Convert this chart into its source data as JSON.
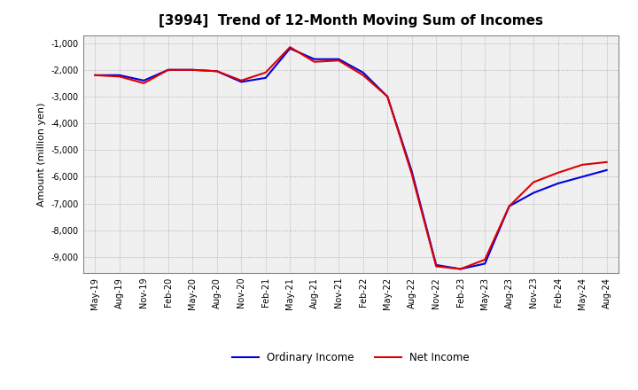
{
  "title": "[3994]  Trend of 12-Month Moving Sum of Incomes",
  "ylabel": "Amount (million yen)",
  "ylim": [
    -9600,
    -700
  ],
  "yticks": [
    -9000,
    -8000,
    -7000,
    -6000,
    -5000,
    -4000,
    -3000,
    -2000,
    -1000
  ],
  "background_color": "#ffffff",
  "plot_bg_color": "#f0f0f0",
  "grid_color": "#999999",
  "x_labels": [
    "May-19",
    "Aug-19",
    "Nov-19",
    "Feb-20",
    "May-20",
    "Aug-20",
    "Nov-20",
    "Feb-21",
    "May-21",
    "Aug-21",
    "Nov-21",
    "Feb-22",
    "May-22",
    "Aug-22",
    "Nov-22",
    "Feb-23",
    "May-23",
    "Aug-23",
    "Nov-23",
    "Feb-24",
    "May-24",
    "Aug-24"
  ],
  "ordinary_income": [
    -2200,
    -2200,
    -2400,
    -2000,
    -2000,
    -2050,
    -2450,
    -2300,
    -1200,
    -1600,
    -1600,
    -2100,
    -3000,
    -5800,
    -9300,
    -9450,
    -9250,
    -7100,
    -6600,
    -6250,
    -6000,
    -5750
  ],
  "net_income": [
    -2200,
    -2250,
    -2500,
    -2000,
    -2000,
    -2050,
    -2400,
    -2100,
    -1150,
    -1700,
    -1650,
    -2200,
    -3000,
    -5900,
    -9350,
    -9450,
    -9100,
    -7100,
    -6200,
    -5850,
    -5550,
    -5450
  ],
  "ordinary_color": "#0000dd",
  "net_color": "#dd0000",
  "line_width": 1.5,
  "legend_labels": [
    "Ordinary Income",
    "Net Income"
  ],
  "title_fontsize": 11,
  "tick_fontsize": 7,
  "ylabel_fontsize": 8
}
